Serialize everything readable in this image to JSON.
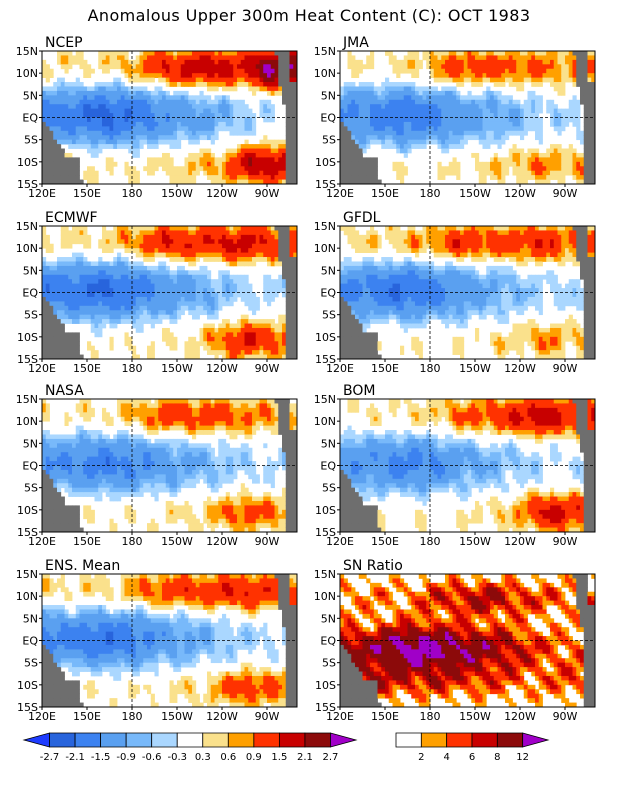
{
  "figure": {
    "title": "Anomalous Upper 300m Heat Content (C): OCT 1983"
  },
  "chart_data": [
    {
      "type": "heatmap",
      "title": "NCEP",
      "lat_ticks": [
        "15N",
        "10N",
        "5N",
        "EQ",
        "5S",
        "10S",
        "15S"
      ],
      "lon_ticks": [
        "120E",
        "150E",
        "180",
        "150W",
        "120W",
        "90W"
      ],
      "lon_range": [
        120,
        290
      ],
      "lat_range": [
        -15,
        15
      ],
      "features": {
        "eq_cold": [
          [
            140,
            -1.8
          ],
          [
            160,
            -2.3
          ],
          [
            180,
            -2.0
          ],
          [
            200,
            -1.5
          ],
          [
            230,
            -1.0
          ],
          [
            260,
            -0.5
          ],
          [
            275,
            -0.3
          ]
        ],
        "north_warm": [
          [
            150,
            0.5
          ],
          [
            165,
            0.6
          ],
          [
            180,
            0.8
          ],
          [
            200,
            1.5
          ],
          [
            230,
            2.0
          ],
          [
            255,
            1.6
          ],
          [
            270,
            2.8
          ]
        ],
        "south_warm": [
          [
            190,
            0.4
          ],
          [
            215,
            0.6
          ],
          [
            240,
            0.8
          ],
          [
            260,
            2.0
          ],
          [
            275,
            1.8
          ]
        ]
      }
    },
    {
      "type": "heatmap",
      "title": "JMA",
      "lat_ticks": [
        "15N",
        "10N",
        "5N",
        "EQ",
        "5S",
        "10S",
        "15S"
      ],
      "lon_ticks": [
        "120E",
        "150E",
        "180",
        "150W",
        "120W",
        "90W"
      ],
      "lon_range": [
        120,
        290
      ],
      "lat_range": [
        -15,
        15
      ],
      "features": {
        "eq_cold": [
          [
            140,
            -1.6
          ],
          [
            160,
            -2.0
          ],
          [
            180,
            -1.8
          ],
          [
            200,
            -1.3
          ],
          [
            230,
            -0.9
          ],
          [
            260,
            -0.4
          ]
        ],
        "north_warm": [
          [
            155,
            0.4
          ],
          [
            180,
            0.8
          ],
          [
            200,
            1.3
          ],
          [
            230,
            1.2
          ],
          [
            255,
            1.0
          ],
          [
            270,
            0.9
          ]
        ],
        "south_warm": [
          [
            200,
            0.3
          ],
          [
            230,
            0.6
          ],
          [
            255,
            0.9
          ],
          [
            270,
            0.7
          ]
        ]
      }
    },
    {
      "type": "heatmap",
      "title": "ECMWF",
      "lat_ticks": [
        "15N",
        "10N",
        "5N",
        "EQ",
        "5S",
        "10S",
        "15S"
      ],
      "lon_ticks": [
        "120E",
        "150E",
        "180",
        "150W",
        "120W",
        "90W"
      ],
      "lon_range": [
        120,
        290
      ],
      "lat_range": [
        -15,
        15
      ],
      "features": {
        "eq_cold": [
          [
            140,
            -1.9
          ],
          [
            160,
            -2.2
          ],
          [
            180,
            -1.9
          ],
          [
            200,
            -1.4
          ],
          [
            230,
            -0.9
          ],
          [
            260,
            -0.4
          ]
        ],
        "north_warm": [
          [
            150,
            0.5
          ],
          [
            180,
            0.9
          ],
          [
            200,
            1.6
          ],
          [
            230,
            1.5
          ],
          [
            255,
            1.8
          ],
          [
            270,
            1.4
          ]
        ],
        "south_warm": [
          [
            200,
            0.3
          ],
          [
            230,
            0.6
          ],
          [
            255,
            1.6
          ],
          [
            270,
            1.2
          ]
        ]
      }
    },
    {
      "type": "heatmap",
      "title": "GFDL",
      "lat_ticks": [
        "15N",
        "10N",
        "5N",
        "EQ",
        "5S",
        "10S",
        "15S"
      ],
      "lon_ticks": [
        "120E",
        "150E",
        "180",
        "150W",
        "120W",
        "90W"
      ],
      "lon_range": [
        120,
        290
      ],
      "lat_range": [
        -15,
        15
      ],
      "features": {
        "eq_cold": [
          [
            140,
            -1.7
          ],
          [
            160,
            -2.1
          ],
          [
            180,
            -1.8
          ],
          [
            200,
            -1.3
          ],
          [
            230,
            -0.8
          ],
          [
            260,
            -0.4
          ]
        ],
        "north_warm": [
          [
            150,
            0.6
          ],
          [
            175,
            0.9
          ],
          [
            200,
            1.4
          ],
          [
            230,
            1.2
          ],
          [
            255,
            1.5
          ],
          [
            270,
            1.1
          ]
        ],
        "south_warm": [
          [
            200,
            0.3
          ],
          [
            235,
            0.5
          ],
          [
            260,
            0.9
          ],
          [
            275,
            0.6
          ]
        ]
      }
    },
    {
      "type": "heatmap",
      "title": "NASA",
      "lat_ticks": [
        "15N",
        "10N",
        "5N",
        "EQ",
        "5S",
        "10S",
        "15S"
      ],
      "lon_ticks": [
        "120E",
        "150E",
        "180",
        "150W",
        "120W",
        "90W"
      ],
      "lon_range": [
        120,
        290
      ],
      "lat_range": [
        -15,
        15
      ],
      "features": {
        "eq_cold": [
          [
            140,
            -1.5
          ],
          [
            160,
            -1.8
          ],
          [
            180,
            -1.6
          ],
          [
            200,
            -1.2
          ],
          [
            230,
            -0.8
          ],
          [
            260,
            -0.4
          ]
        ],
        "north_warm": [
          [
            150,
            0.4
          ],
          [
            180,
            0.7
          ],
          [
            200,
            1.3
          ],
          [
            230,
            1.2
          ],
          [
            255,
            1.0
          ],
          [
            270,
            0.8
          ]
        ],
        "south_warm": [
          [
            200,
            0.3
          ],
          [
            230,
            0.6
          ],
          [
            255,
            1.2
          ],
          [
            270,
            0.9
          ]
        ]
      }
    },
    {
      "type": "heatmap",
      "title": "BOM",
      "lat_ticks": [
        "15N",
        "10N",
        "5N",
        "EQ",
        "5S",
        "10S",
        "15S"
      ],
      "lon_ticks": [
        "120E",
        "150E",
        "180",
        "150W",
        "120W",
        "90W"
      ],
      "lon_range": [
        120,
        290
      ],
      "lat_range": [
        -15,
        15
      ],
      "features": {
        "eq_cold": [
          [
            140,
            -1.4
          ],
          [
            160,
            -1.7
          ],
          [
            180,
            -1.6
          ],
          [
            200,
            -1.1
          ],
          [
            230,
            -0.7
          ],
          [
            260,
            -0.3
          ]
        ],
        "north_warm": [
          [
            150,
            0.4
          ],
          [
            180,
            0.6
          ],
          [
            200,
            1.0
          ],
          [
            230,
            1.4
          ],
          [
            255,
            2.0
          ],
          [
            270,
            1.5
          ]
        ],
        "south_warm": [
          [
            200,
            0.3
          ],
          [
            235,
            0.6
          ],
          [
            260,
            1.8
          ],
          [
            275,
            1.4
          ]
        ]
      }
    },
    {
      "type": "heatmap",
      "title": "ENS. Mean",
      "lat_ticks": [
        "15N",
        "10N",
        "5N",
        "EQ",
        "5S",
        "10S",
        "15S"
      ],
      "lon_ticks": [
        "120E",
        "150E",
        "180",
        "150W",
        "120W",
        "90W"
      ],
      "lon_range": [
        120,
        290
      ],
      "lat_range": [
        -15,
        15
      ],
      "features": {
        "eq_cold": [
          [
            140,
            -1.7
          ],
          [
            160,
            -2.0
          ],
          [
            180,
            -1.8
          ],
          [
            200,
            -1.3
          ],
          [
            230,
            -0.8
          ],
          [
            260,
            -0.4
          ]
        ],
        "north_warm": [
          [
            150,
            0.5
          ],
          [
            180,
            0.8
          ],
          [
            200,
            1.3
          ],
          [
            230,
            1.3
          ],
          [
            255,
            1.6
          ],
          [
            270,
            1.3
          ]
        ],
        "south_warm": [
          [
            200,
            0.3
          ],
          [
            230,
            0.6
          ],
          [
            255,
            1.3
          ],
          [
            270,
            1.0
          ]
        ]
      }
    },
    {
      "type": "heatmap",
      "title": "SN Ratio",
      "lat_ticks": [
        "15N",
        "10N",
        "5N",
        "EQ",
        "5S",
        "10S",
        "15S"
      ],
      "lon_ticks": [
        "120E",
        "150E",
        "180",
        "150W",
        "120W",
        "90W"
      ],
      "lon_range": [
        120,
        290
      ],
      "lat_range": [
        -15,
        15
      ],
      "features": {
        "eq_band": [
          [
            140,
            9
          ],
          [
            160,
            13
          ],
          [
            180,
            14
          ],
          [
            200,
            11
          ],
          [
            230,
            8
          ],
          [
            260,
            4
          ]
        ],
        "north_band": [
          [
            160,
            3
          ],
          [
            190,
            6
          ],
          [
            215,
            8
          ],
          [
            240,
            6
          ],
          [
            265,
            4
          ]
        ],
        "south_band": [
          [
            150,
            6
          ],
          [
            180,
            5
          ],
          [
            210,
            5
          ],
          [
            245,
            3
          ],
          [
            270,
            4
          ]
        ]
      }
    }
  ],
  "colorbars": [
    {
      "labels": [
        "-2.7",
        "-2.1",
        "-1.5",
        "-0.9",
        "-0.6",
        "-0.3",
        "0.3",
        "0.6",
        "0.9",
        "1.5",
        "2.1",
        "2.7"
      ],
      "colors": [
        "#1e3cff",
        "#2864dc",
        "#3c82f0",
        "#5aa0f0",
        "#78b9fa",
        "#aad7ff",
        "#ffffff",
        "#fae18c",
        "#ffa000",
        "#ff3200",
        "#c80000",
        "#8c0a0a",
        "#a000c8"
      ]
    },
    {
      "labels": [
        "2",
        "4",
        "6",
        "8",
        "12"
      ],
      "colors": [
        "#ffffff",
        "#ffa000",
        "#ff3200",
        "#c80000",
        "#8c0a0a",
        "#a000c8"
      ]
    }
  ]
}
